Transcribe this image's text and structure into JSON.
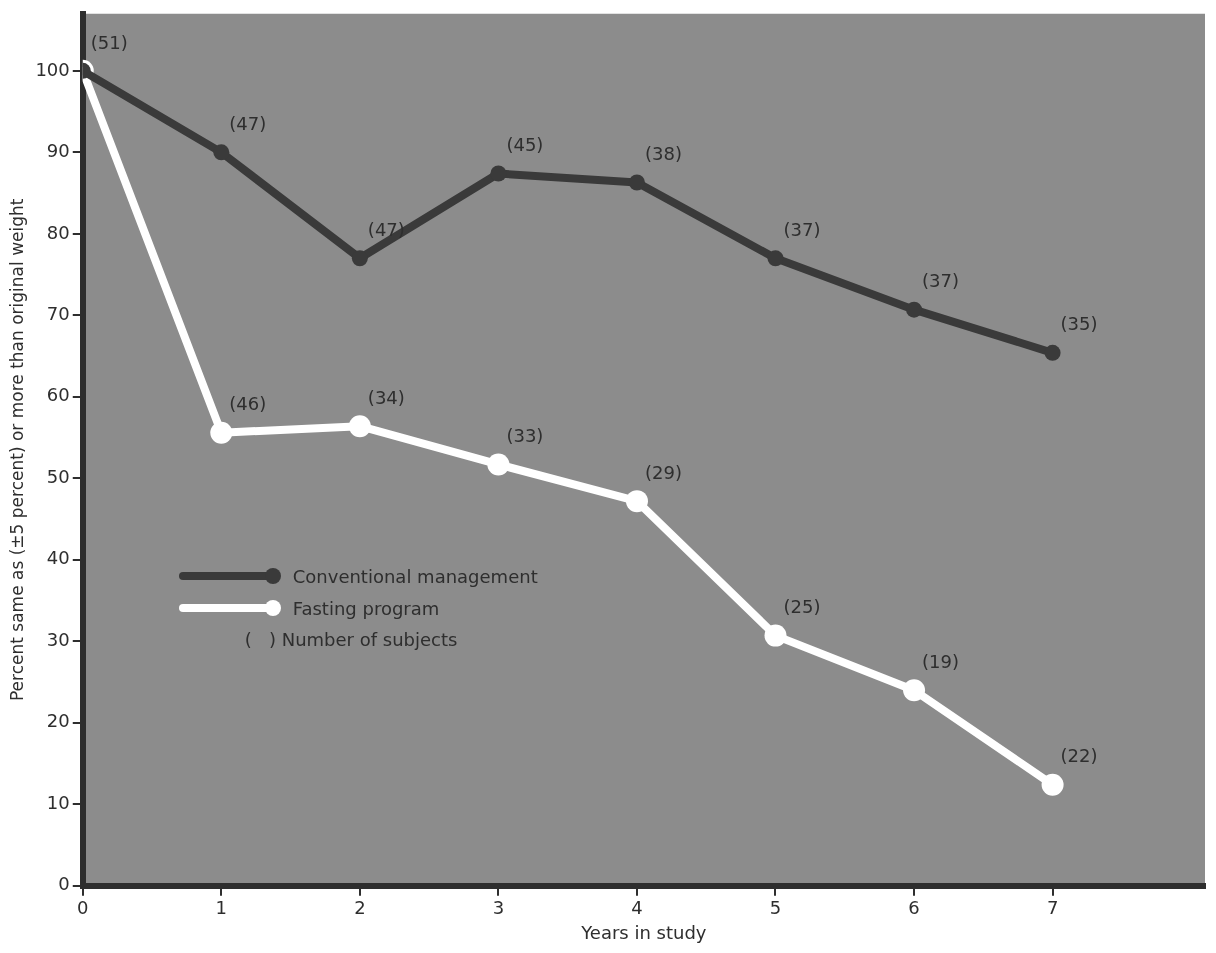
{
  "chart_data": {
    "type": "line",
    "xlabel": "Years in study",
    "ylabel": "Percent same as (±5 percent) or more than original weight",
    "x": [
      0,
      1,
      2,
      3,
      4,
      5,
      6,
      7
    ],
    "series": [
      {
        "name": "Conventional management",
        "color": "#3a3a3a",
        "values": [
          100,
          90,
          77,
          87.4,
          86.3,
          77,
          70.7,
          65.4
        ]
      },
      {
        "name": "Fasting program",
        "color": "#ffffff",
        "values": [
          100,
          55.6,
          56.4,
          51.7,
          47.2,
          30.7,
          24,
          12.4
        ]
      }
    ],
    "xlim": [
      0,
      8.1
    ],
    "xticks": [
      0,
      1,
      2,
      3,
      4,
      5,
      6,
      7
    ],
    "ylim": [
      0,
      107
    ],
    "yticks": [
      0,
      10,
      20,
      30,
      40,
      50,
      60,
      70,
      80,
      90,
      100
    ],
    "grid": false,
    "legend": "center left",
    "marker": "circle",
    "line_style": "solid",
    "annotations": [
      {
        "text": "(51)",
        "x": 0,
        "y": 100
      },
      {
        "text": "(47)",
        "x": 1,
        "y": 90
      },
      {
        "text": "(47)",
        "x": 2,
        "y": 77
      },
      {
        "text": "(45)",
        "x": 3,
        "y": 87.4
      },
      {
        "text": "(38)",
        "x": 4,
        "y": 86.3
      },
      {
        "text": "(37)",
        "x": 5,
        "y": 77
      },
      {
        "text": "(37)",
        "x": 6,
        "y": 70.7
      },
      {
        "text": "(35)",
        "x": 7,
        "y": 65.4
      },
      {
        "text": "(46)",
        "x": 1,
        "y": 55.6
      },
      {
        "text": "(34)",
        "x": 2,
        "y": 56.4
      },
      {
        "text": "(33)",
        "x": 3,
        "y": 51.7
      },
      {
        "text": "(29)",
        "x": 4,
        "y": 47.2
      },
      {
        "text": "(25)",
        "x": 5,
        "y": 30.7
      },
      {
        "text": "(19)",
        "x": 6,
        "y": 24
      },
      {
        "text": "(22)",
        "x": 7,
        "y": 12.4
      },
      "(   ) Number of subjects"
    ]
  }
}
